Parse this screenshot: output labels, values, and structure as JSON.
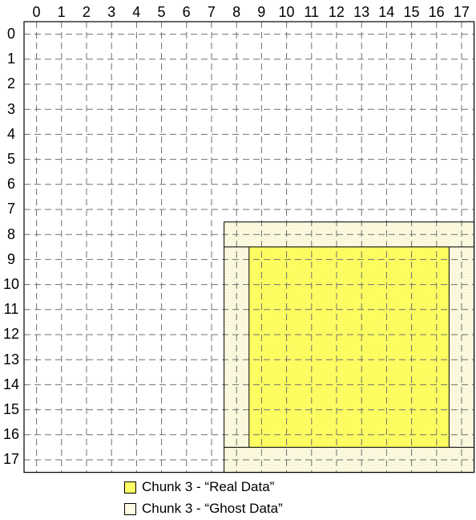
{
  "grid": {
    "columns": [
      "0",
      "1",
      "2",
      "3",
      "4",
      "5",
      "6",
      "7",
      "8",
      "9",
      "10",
      "11",
      "12",
      "13",
      "14",
      "15",
      "16",
      "17"
    ],
    "rows": [
      "0",
      "1",
      "2",
      "3",
      "4",
      "5",
      "6",
      "7",
      "8",
      "9",
      "10",
      "11",
      "12",
      "13",
      "14",
      "15",
      "16",
      "17"
    ]
  },
  "regions": {
    "ghost": {
      "row_start": 8,
      "row_end": 17,
      "col_start": 8,
      "col_end": 17
    },
    "real": {
      "row_start": 9,
      "row_end": 16,
      "col_start": 9,
      "col_end": 16
    }
  },
  "legend": [
    {
      "label": "Chunk 3 - “Real Data”",
      "color": "#ffff66"
    },
    {
      "label": "Chunk 3 - “Ghost Data”",
      "color": "#fdfbe2"
    }
  ],
  "colors": {
    "real_fill": "#ffff66",
    "ghost_fill": "#fdfbe2",
    "grid_line": "#707070",
    "border": "#000000"
  }
}
